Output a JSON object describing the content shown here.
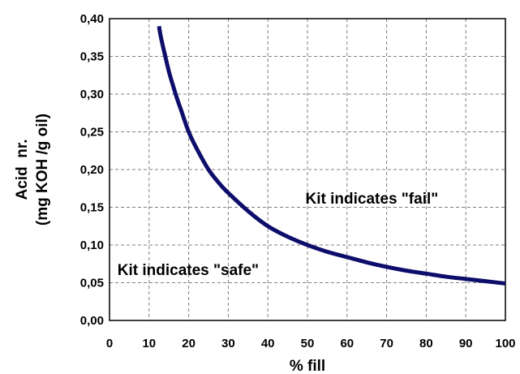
{
  "chart_data": {
    "type": "line",
    "xlabel": "% fill",
    "ylabel_lines": [
      "Acid  nr.",
      "(mg KOH /g oil)"
    ],
    "xlim": [
      0,
      100
    ],
    "ylim": [
      0,
      0.4
    ],
    "x_ticks": [
      0,
      10,
      20,
      30,
      40,
      50,
      60,
      70,
      80,
      90,
      100
    ],
    "y_ticks": [
      0,
      0.05,
      0.1,
      0.15,
      0.2,
      0.25,
      0.3,
      0.35,
      0.4
    ],
    "x_tick_labels": [
      "0",
      "10",
      "20",
      "30",
      "40",
      "50",
      "60",
      "70",
      "80",
      "90",
      "100"
    ],
    "y_tick_labels": [
      "0,00",
      "0,05",
      "0,10",
      "0,15",
      "0,20",
      "0,25",
      "0,30",
      "0,35",
      "0,40"
    ],
    "grid": true,
    "series": [
      {
        "color": "#0d0d6b",
        "x": [
          12.5,
          13,
          14,
          15,
          16,
          17,
          18,
          20,
          22,
          25,
          28,
          30,
          35,
          40,
          45,
          50,
          55,
          60,
          65,
          70,
          75,
          80,
          85,
          90,
          95,
          100
        ],
        "y": [
          0.39,
          0.375,
          0.352,
          0.33,
          0.312,
          0.295,
          0.28,
          0.25,
          0.228,
          0.2,
          0.18,
          0.169,
          0.145,
          0.125,
          0.111,
          0.1,
          0.091,
          0.084,
          0.077,
          0.071,
          0.066,
          0.062,
          0.058,
          0.055,
          0.052,
          0.049
        ]
      }
    ],
    "annotations": [
      {
        "text": "Kit indicates \"fail\"",
        "x": 49.5,
        "y": 0.155
      },
      {
        "text": "Kit indicates \"safe\"",
        "x": 2,
        "y": 0.06
      }
    ]
  }
}
